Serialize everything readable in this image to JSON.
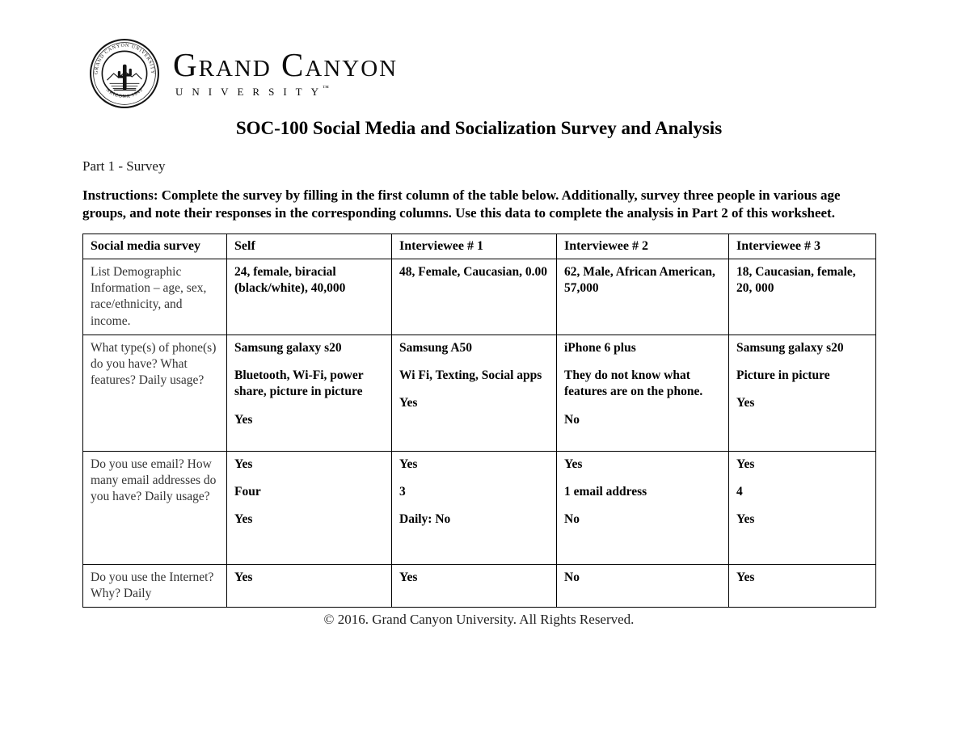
{
  "page": {
    "logo": {
      "seal_name": "grand-canyon-university-seal",
      "wordmark_line1": "Grand Canyon",
      "wordmark_line2": "UNIVERSITY",
      "trademark": "™"
    },
    "title": "SOC-100 Social Media and Socialization Survey and Analysis",
    "part_label": "Part 1 - Survey",
    "instructions": "Instructions:  Complete the survey by filling in the first column of the table below. Additionally, survey three people in various age groups, and note their responses in the corresponding columns. Use this data to complete the analysis in Part 2 of this worksheet.",
    "footer": "© 2016. Grand Canyon University. All Rights Reserved."
  },
  "table": {
    "headers": [
      "Social media survey",
      "Self",
      "Interviewee # 1",
      "Interviewee # 2",
      "Interviewee # 3"
    ],
    "rows": [
      {
        "question": "List Demographic Information – age, sex, race/ethnicity, and income.",
        "answers": [
          [
            "24, female, biracial (black/white), 40,000"
          ],
          [
            "48, Female, Caucasian, 0.00"
          ],
          [
            "62, Male, African American, 57,000"
          ],
          [
            "18, Caucasian, female, 20, 000"
          ]
        ]
      },
      {
        "question": "What type(s) of phone(s) do you have? What features? Daily usage?",
        "answers": [
          [
            "Samsung galaxy s20",
            "Bluetooth, Wi-Fi, power share, picture in picture",
            "Yes"
          ],
          [
            "Samsung A50",
            "Wi Fi, Texting, Social apps",
            "Yes"
          ],
          [
            "iPhone 6 plus",
            "They do not know what features are on the phone.",
            "No"
          ],
          [
            "Samsung galaxy s20",
            "Picture in picture",
            "Yes"
          ]
        ]
      },
      {
        "question": "Do you use email? How many email addresses do you have? Daily usage?",
        "answers": [
          [
            "Yes",
            "Four",
            "Yes"
          ],
          [
            "Yes",
            "3",
            "Daily: No"
          ],
          [
            "Yes",
            "1 email address",
            "No"
          ],
          [
            "Yes",
            "4",
            "Yes"
          ]
        ]
      },
      {
        "question": "Do you use the Internet? Why? Daily",
        "answers": [
          [
            "Yes"
          ],
          [
            "Yes"
          ],
          [
            "No"
          ],
          [
            "Yes"
          ]
        ]
      }
    ]
  }
}
